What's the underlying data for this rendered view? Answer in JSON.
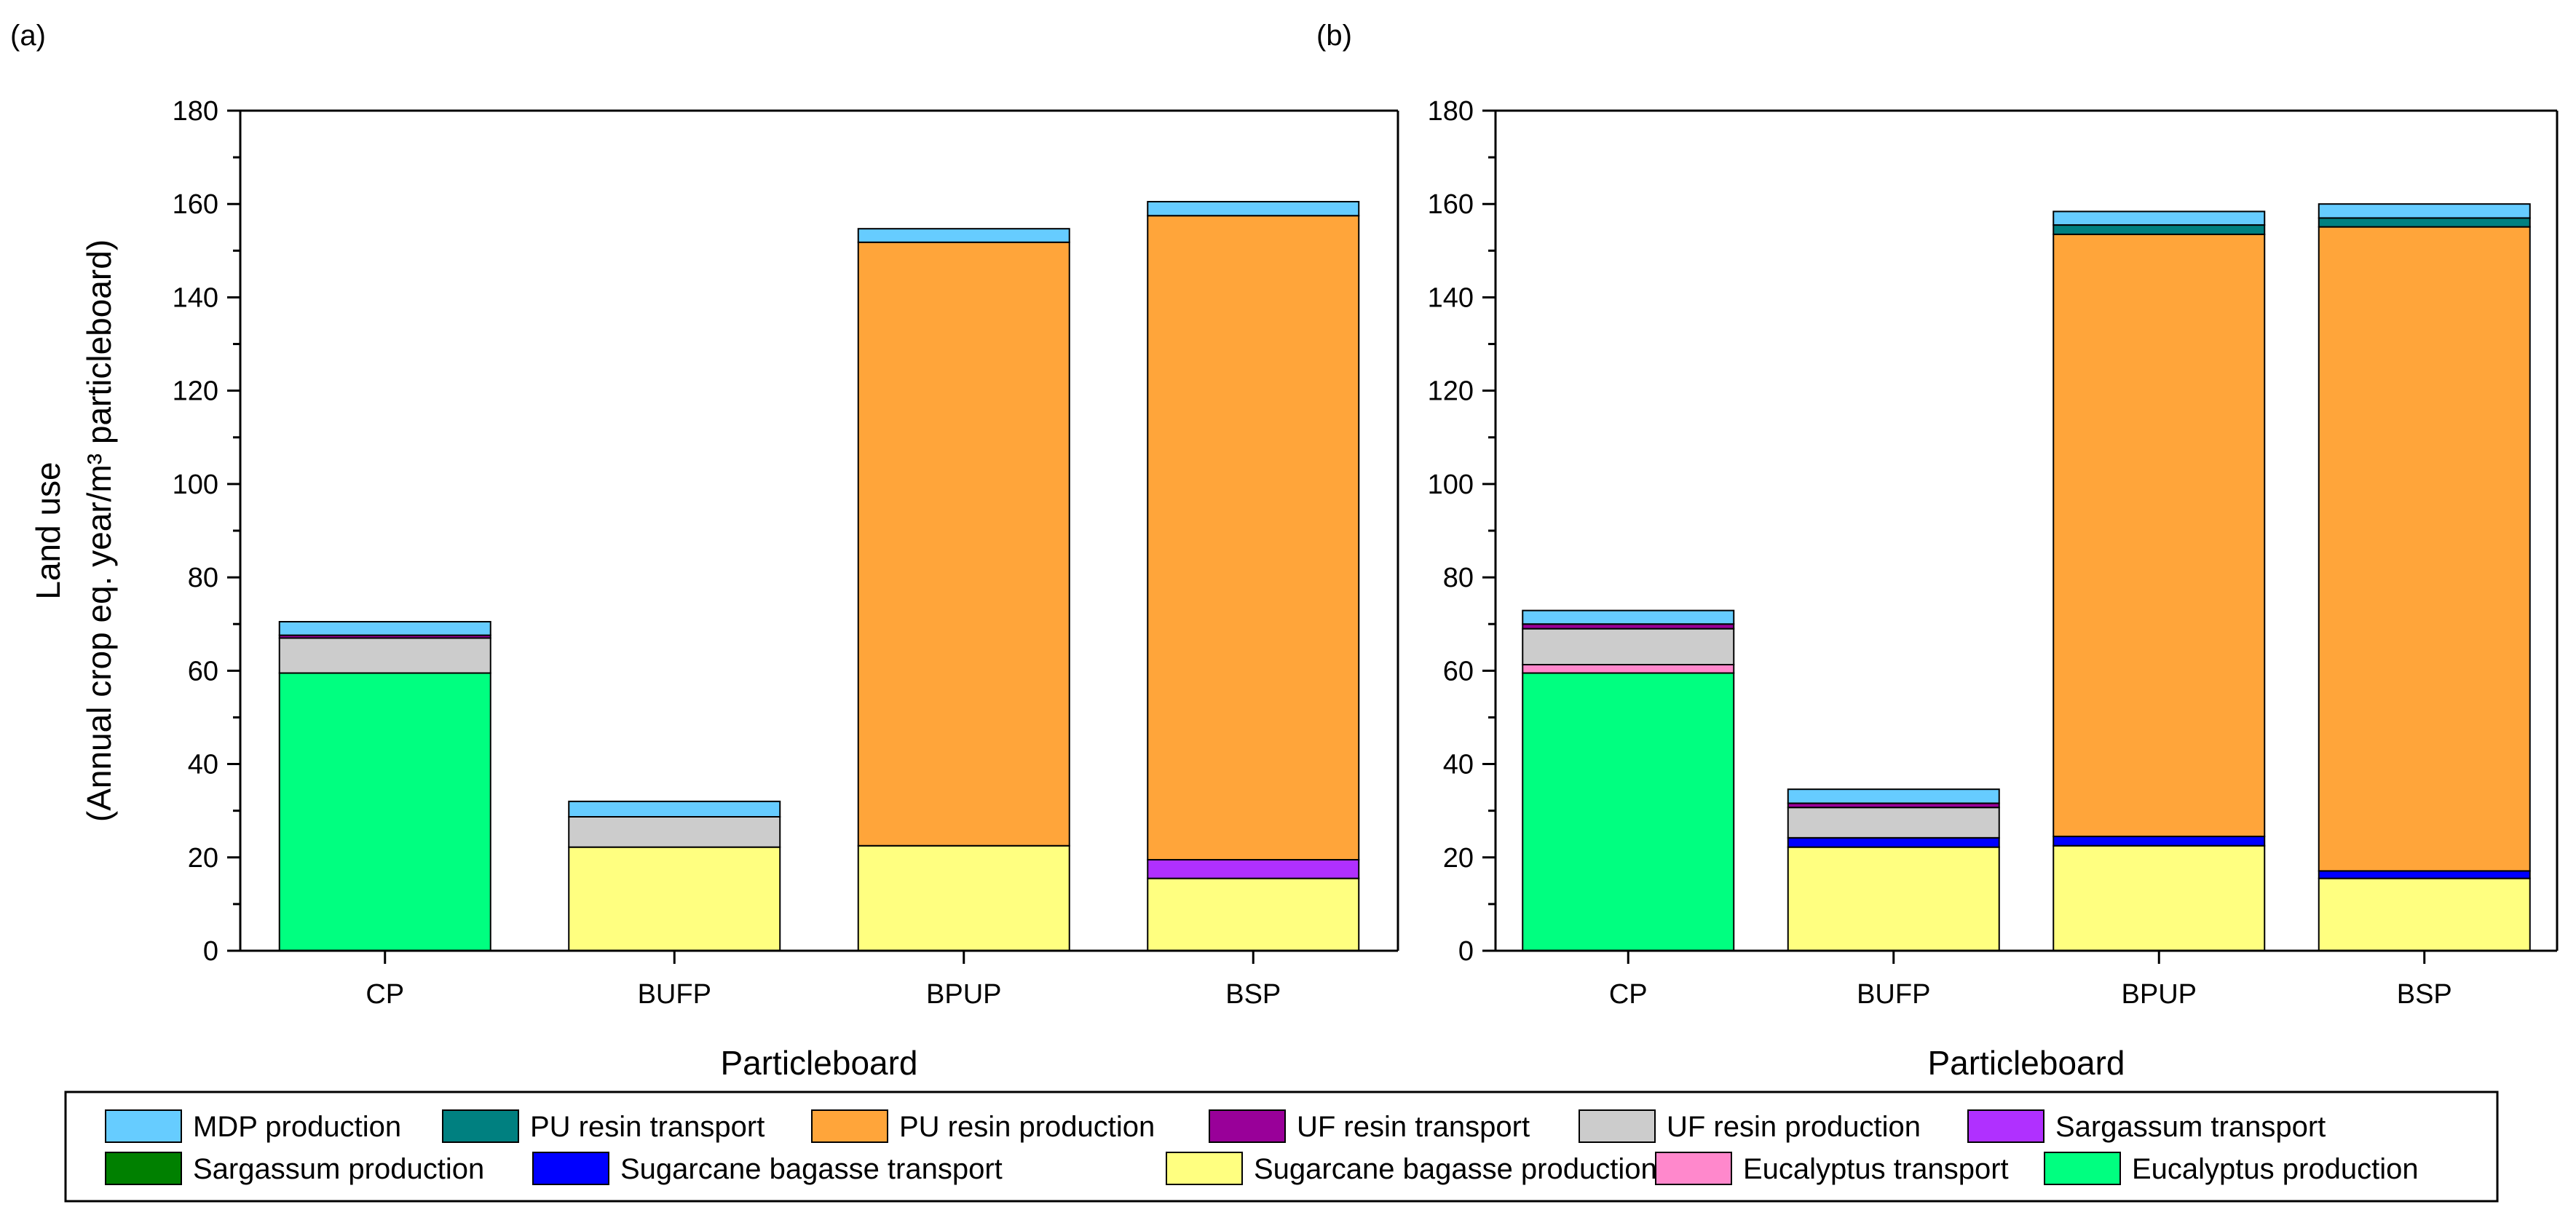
{
  "chart_data": {
    "type": "bar",
    "stacked": true,
    "xlabel": "Particleboard",
    "ylabel_line1": "Land use",
    "ylabel_line2": "(Annual crop eq. year/m³ particleboard)",
    "ylim": [
      0,
      180
    ],
    "yticks": [
      "0",
      "20",
      "40",
      "60",
      "80",
      "100",
      "120",
      "140",
      "160",
      "180"
    ],
    "categories": [
      "CP",
      "BUFP",
      "BPUP",
      "BSP"
    ],
    "panels": [
      {
        "label": "(a)",
        "series": [
          {
            "name": "Eucalyptus production",
            "color": "#00FF80",
            "values": [
              59.5,
              0,
              0,
              0
            ]
          },
          {
            "name": "Eucalyptus transport",
            "color": "#FF88CC",
            "values": [
              0,
              0,
              0,
              0
            ]
          },
          {
            "name": "Sugarcane bagasse production",
            "color": "#FFFF80",
            "values": [
              0,
              22.2,
              22.5,
              15.5
            ]
          },
          {
            "name": "Sugarcane bagasse transport",
            "color": "#0000FF",
            "values": [
              0,
              0,
              0,
              0
            ]
          },
          {
            "name": "Sargassum production",
            "color": "#008000",
            "values": [
              0,
              0,
              0,
              0
            ]
          },
          {
            "name": "Sargassum transport",
            "color": "#B030FF",
            "values": [
              0,
              0,
              0,
              4.0
            ]
          },
          {
            "name": "UF resin production",
            "color": "#CCCCCC",
            "values": [
              7.5,
              6.5,
              0,
              0
            ]
          },
          {
            "name": "UF resin transport",
            "color": "#990099",
            "values": [
              0.6,
              0,
              0,
              0
            ]
          },
          {
            "name": "PU resin production",
            "color": "#FFA53A",
            "values": [
              0,
              0,
              129.3,
              138.0
            ]
          },
          {
            "name": "PU resin transport",
            "color": "#008080",
            "values": [
              0,
              0,
              0,
              0
            ]
          },
          {
            "name": "MDP production",
            "color": "#66CCFF",
            "values": [
              2.9,
              3.3,
              2.9,
              3.0
            ]
          }
        ]
      },
      {
        "label": "(b)",
        "series": [
          {
            "name": "Eucalyptus production",
            "color": "#00FF80",
            "values": [
              59.5,
              0,
              0,
              0
            ]
          },
          {
            "name": "Eucalyptus transport",
            "color": "#FF88CC",
            "values": [
              1.8,
              0,
              0,
              0
            ]
          },
          {
            "name": "Sugarcane bagasse production",
            "color": "#FFFF80",
            "values": [
              0,
              22.2,
              22.5,
              15.5
            ]
          },
          {
            "name": "Sugarcane bagasse transport",
            "color": "#0000FF",
            "values": [
              0,
              2.0,
              2.0,
              1.6
            ]
          },
          {
            "name": "Sargassum production",
            "color": "#008000",
            "values": [
              0,
              0,
              0,
              0
            ]
          },
          {
            "name": "Sargassum transport",
            "color": "#B030FF",
            "values": [
              0,
              0,
              0,
              0
            ]
          },
          {
            "name": "UF resin production",
            "color": "#CCCCCC",
            "values": [
              7.7,
              6.5,
              0,
              0
            ]
          },
          {
            "name": "UF resin transport",
            "color": "#990099",
            "values": [
              1.0,
              0.9,
              0,
              0
            ]
          },
          {
            "name": "PU resin production",
            "color": "#FFA53A",
            "values": [
              0,
              0,
              129.0,
              138.0
            ]
          },
          {
            "name": "PU resin transport",
            "color": "#008080",
            "values": [
              0,
              0,
              2.0,
              1.9
            ]
          },
          {
            "name": "MDP production",
            "color": "#66CCFF",
            "values": [
              2.9,
              3.0,
              2.9,
              3.0
            ]
          }
        ]
      }
    ],
    "legend": {
      "placement": "bottom",
      "rows": [
        [
          "MDP production",
          "PU resin transport",
          "PU resin production",
          "UF resin transport",
          "UF resin production",
          "Sargassum transport"
        ],
        [
          "Sargassum production",
          "Sugarcane bagasse transport",
          "Sugarcane bagasse production",
          "Eucalyptus transport",
          "Eucalyptus production"
        ]
      ]
    }
  }
}
